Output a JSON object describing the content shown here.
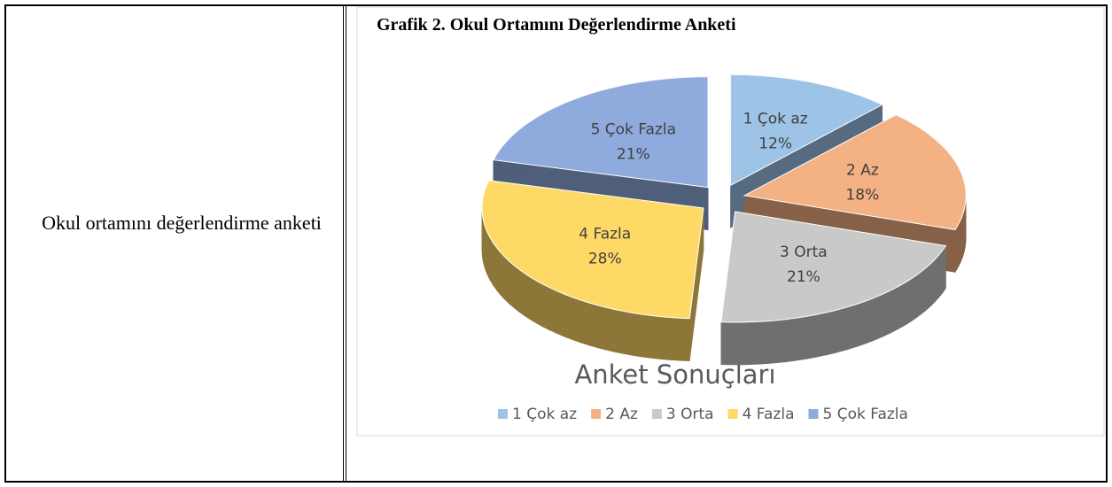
{
  "table": {
    "rows": [
      [
        "Okul ortamını değerlendirme anketi"
      ]
    ]
  },
  "chart_data": {
    "type": "pie",
    "title": "Grafik 2. Okul Ortamını Değerlendirme Anketi",
    "subtitle": "Anket Sonuçları",
    "categories": [
      "1 Çok az",
      "2 Az",
      "3 Orta",
      "4 Fazla",
      "5 Çok Fazla"
    ],
    "values": [
      12,
      18,
      21,
      28,
      21
    ],
    "value_labels": [
      "12%",
      "18%",
      "21%",
      "28%",
      "21%"
    ],
    "colors": [
      "#9dc3e6",
      "#f4b183",
      "#c9c9c9",
      "#ffd966",
      "#8faadc"
    ],
    "legend": "bottom"
  }
}
